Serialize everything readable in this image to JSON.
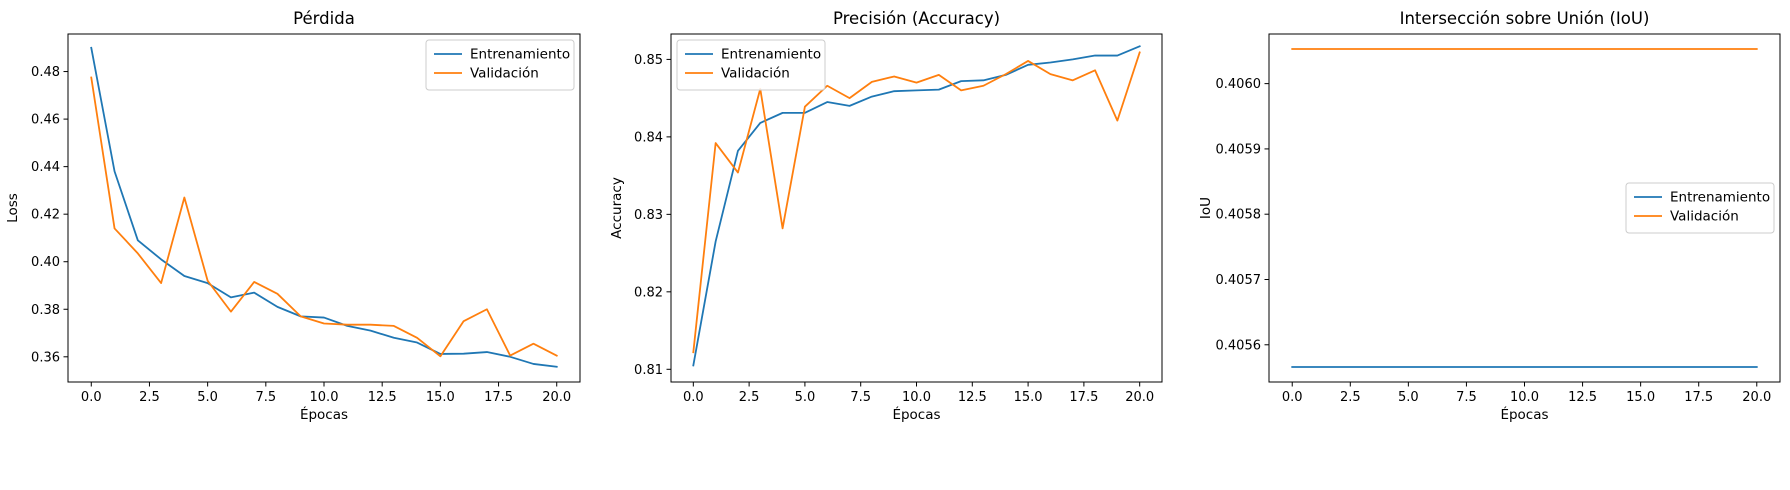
{
  "colors": {
    "train": "#1f77b4",
    "val": "#ff7f0e"
  },
  "chart_data": [
    {
      "type": "line",
      "title": "Pérdida",
      "xlabel": "Épocas",
      "ylabel": "Loss",
      "xlim": [
        -1.0,
        21.0
      ],
      "ylim": [
        0.3494,
        0.4958
      ],
      "xticks": [
        0.0,
        2.5,
        5.0,
        7.5,
        10.0,
        12.5,
        15.0,
        17.5,
        20.0
      ],
      "xtick_labels": [
        "0.0",
        "2.5",
        "5.0",
        "7.5",
        "10.0",
        "12.5",
        "15.0",
        "17.5",
        "20.0"
      ],
      "yticks": [
        0.36,
        0.38,
        0.4,
        0.42,
        0.44,
        0.46,
        0.48
      ],
      "ytick_labels": [
        "0.36",
        "0.38",
        "0.40",
        "0.42",
        "0.44",
        "0.46",
        "0.48"
      ],
      "legend": "upper right",
      "x": [
        0,
        1,
        2,
        3,
        4,
        5,
        6,
        7,
        8,
        9,
        10,
        11,
        12,
        13,
        14,
        15,
        16,
        17,
        18,
        19,
        20
      ],
      "series": [
        {
          "name": "Entrenamiento",
          "color": "#1f77b4",
          "values": [
            0.49,
            0.438,
            0.409,
            0.401,
            0.394,
            0.391,
            0.385,
            0.387,
            0.381,
            0.377,
            0.3765,
            0.373,
            0.371,
            0.368,
            0.366,
            0.3612,
            0.3613,
            0.362,
            0.36,
            0.357,
            0.3558
          ]
        },
        {
          "name": "Validación",
          "color": "#ff7f0e",
          "values": [
            0.4775,
            0.414,
            0.4035,
            0.391,
            0.427,
            0.392,
            0.379,
            0.3915,
            0.3865,
            0.377,
            0.374,
            0.3735,
            0.3735,
            0.373,
            0.368,
            0.3602,
            0.375,
            0.38,
            0.3605,
            0.3655,
            0.3605
          ]
        }
      ]
    },
    {
      "type": "line",
      "title": "Precisión (Accuracy)",
      "xlabel": "Épocas",
      "ylabel": "Accuracy",
      "xlim": [
        -1.0,
        21.0
      ],
      "ylim": [
        0.80836,
        0.85328
      ],
      "xticks": [
        0.0,
        2.5,
        5.0,
        7.5,
        10.0,
        12.5,
        15.0,
        17.5,
        20.0
      ],
      "xtick_labels": [
        "0.0",
        "2.5",
        "5.0",
        "7.5",
        "10.0",
        "12.5",
        "15.0",
        "17.5",
        "20.0"
      ],
      "yticks": [
        0.81,
        0.82,
        0.83,
        0.84,
        0.85
      ],
      "ytick_labels": [
        "0.81",
        "0.82",
        "0.83",
        "0.84",
        "0.85"
      ],
      "legend": "upper left",
      "x": [
        0,
        1,
        2,
        3,
        4,
        5,
        6,
        7,
        8,
        9,
        10,
        11,
        12,
        13,
        14,
        15,
        16,
        17,
        18,
        19,
        20
      ],
      "series": [
        {
          "name": "Entrenamiento",
          "color": "#1f77b4",
          "values": [
            0.8105,
            0.8265,
            0.8382,
            0.8418,
            0.8431,
            0.8431,
            0.8445,
            0.844,
            0.8452,
            0.8459,
            0.846,
            0.8461,
            0.8472,
            0.8473,
            0.848,
            0.8493,
            0.8496,
            0.85,
            0.8505,
            0.8505,
            0.8517
          ]
        },
        {
          "name": "Validación",
          "color": "#ff7f0e",
          "values": [
            0.8122,
            0.8392,
            0.8354,
            0.8462,
            0.8282,
            0.8439,
            0.8466,
            0.845,
            0.8471,
            0.8478,
            0.847,
            0.848,
            0.846,
            0.8466,
            0.8481,
            0.8498,
            0.8481,
            0.8473,
            0.8486,
            0.8421,
            0.8509
          ]
        }
      ]
    },
    {
      "type": "line",
      "title": "Intersección sobre Unión (IoU)",
      "xlabel": "Épocas",
      "ylabel": "IoU",
      "xlim": [
        -1.0,
        21.0
      ],
      "ylim": [
        0.405543,
        0.406076
      ],
      "xticks": [
        0.0,
        2.5,
        5.0,
        7.5,
        10.0,
        12.5,
        15.0,
        17.5,
        20.0
      ],
      "xtick_labels": [
        "0.0",
        "2.5",
        "5.0",
        "7.5",
        "10.0",
        "12.5",
        "15.0",
        "17.5",
        "20.0"
      ],
      "yticks": [
        0.4056,
        0.4057,
        0.4058,
        0.4059,
        0.406
      ],
      "ytick_labels": [
        "0.4056",
        "0.4057",
        "0.4058",
        "0.4059",
        "0.4060"
      ],
      "legend": "center right",
      "x": [
        0,
        1,
        2,
        3,
        4,
        5,
        6,
        7,
        8,
        9,
        10,
        11,
        12,
        13,
        14,
        15,
        16,
        17,
        18,
        19,
        20
      ],
      "series": [
        {
          "name": "Entrenamiento",
          "color": "#1f77b4",
          "values": [
            0.405566,
            0.405566,
            0.405566,
            0.405566,
            0.405566,
            0.405566,
            0.405566,
            0.405566,
            0.405566,
            0.405566,
            0.405566,
            0.405566,
            0.405566,
            0.405566,
            0.405566,
            0.405566,
            0.405566,
            0.405566,
            0.405566,
            0.405566,
            0.405566
          ]
        },
        {
          "name": "Validación",
          "color": "#ff7f0e",
          "values": [
            0.406053,
            0.406053,
            0.406053,
            0.406053,
            0.406053,
            0.406053,
            0.406053,
            0.406053,
            0.406053,
            0.406053,
            0.406053,
            0.406053,
            0.406053,
            0.406053,
            0.406053,
            0.406053,
            0.406053,
            0.406053,
            0.406053,
            0.406053,
            0.406053
          ]
        }
      ]
    }
  ]
}
